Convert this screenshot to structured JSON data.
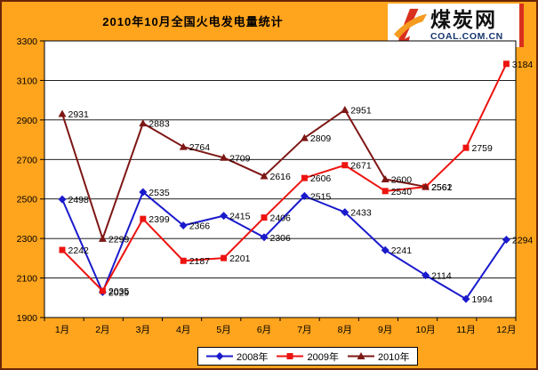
{
  "header": {
    "title": "2010年10月全国火电发电量统计",
    "logo": {
      "brand": "煤炭网",
      "domain": "COAL.COM.CN"
    }
  },
  "chart_data": {
    "type": "line",
    "title": "2010年10月全国火电发电量统计",
    "categories": [
      "1月",
      "2月",
      "3月",
      "4月",
      "5月",
      "6月",
      "7月",
      "8月",
      "9月",
      "10月",
      "11月",
      "12月"
    ],
    "xlabel": "",
    "ylabel": "",
    "ylim": [
      1900,
      3300
    ],
    "y_ticks": [
      1900,
      2100,
      2300,
      2500,
      2700,
      2900,
      3100,
      3300
    ],
    "grid": true,
    "legend_position": "bottom",
    "series": [
      {
        "name": "2008年",
        "color": "#1a1acc",
        "marker": "diamond",
        "values": [
          2498,
          2029,
          2535,
          2366,
          2415,
          2306,
          2515,
          2433,
          2241,
          2114,
          1994,
          2294
        ]
      },
      {
        "name": "2009年",
        "color": "#ec1410",
        "marker": "square",
        "values": [
          2242,
          2035,
          2399,
          2187,
          2201,
          2406,
          2606,
          2671,
          2540,
          2561,
          2759,
          3184
        ]
      },
      {
        "name": "2010年",
        "color": "#7d1715",
        "marker": "triangle",
        "values": [
          2931,
          2299,
          2883,
          2764,
          2709,
          2616,
          2809,
          2951,
          2600,
          2562,
          null,
          null
        ]
      }
    ]
  },
  "colors": {
    "background": "#ffa41d",
    "plot_background": "#ffffff",
    "gridline": "#000000",
    "axis_text": "#000000",
    "logo_red": "#d9301e",
    "logo_orange": "#f59b20",
    "logo_domain_blue": "#16356e"
  }
}
